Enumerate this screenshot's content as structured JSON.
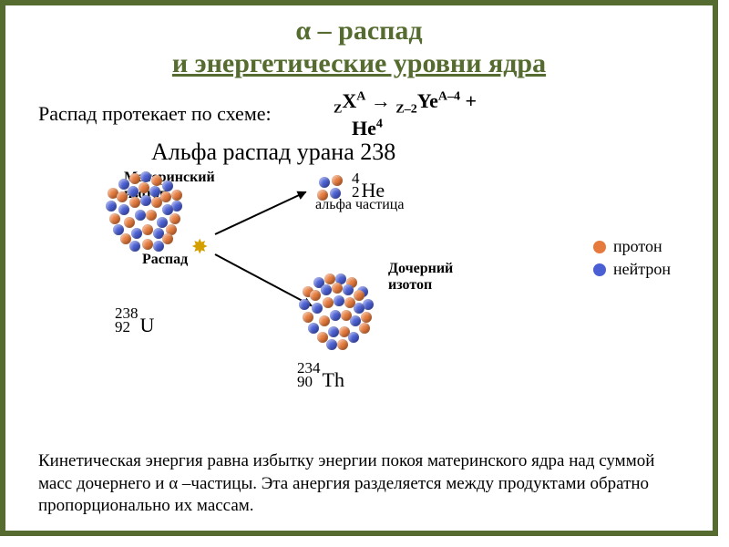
{
  "title": {
    "line1": "α – распад",
    "line2": "и энергетические уровни ядра"
  },
  "subtitle": "Распад протекает по схеме:",
  "formula_parts": {
    "Z": "Z",
    "X": "X",
    "A": "A",
    "arrow": "→",
    "Z2": "Z–2",
    "Y": "Ye",
    "A4": "A–4",
    "plus": "+",
    "He": "He",
    "He4": "4"
  },
  "diagram_title": "Альфа распад урана 238",
  "colors": {
    "proton": "#e67a3c",
    "neutron": "#4a5fd4",
    "frame": "#556b2f",
    "text": "#000000",
    "background": "#ffffff"
  },
  "labels": {
    "parent": "Материнский\nизотоп",
    "alpha_particle": "альфа частица",
    "decay": "Распад",
    "daughter": "Дочерний\nизотоп",
    "U_sym": "U",
    "U_A": "238",
    "U_Z": "92",
    "Th_sym": "Th",
    "Th_A": "234",
    "Th_Z": "90",
    "He_sym": "He",
    "He_A": "4",
    "He_Z": "2"
  },
  "legend": {
    "proton": "протон",
    "neutron": "нейтрон"
  },
  "bottom_text": "Кинетическая энергия равна избытку энергии покоя материнского ядра над суммой масс дочернего и α –частицы. Эта анергия разделяется между продуктами обратно пропорционально их массам.",
  "font": {
    "title_size": 30,
    "body_size": 19,
    "label_size": 16,
    "diagram_title_size": 26
  },
  "particles": {
    "parent_pos": [
      [
        2,
        20,
        "p"
      ],
      [
        14,
        10,
        "n"
      ],
      [
        26,
        4,
        "p"
      ],
      [
        38,
        2,
        "n"
      ],
      [
        50,
        6,
        "p"
      ],
      [
        62,
        12,
        "n"
      ],
      [
        72,
        22,
        "p"
      ],
      [
        0,
        34,
        "n"
      ],
      [
        12,
        24,
        "p"
      ],
      [
        24,
        18,
        "n"
      ],
      [
        36,
        14,
        "p"
      ],
      [
        48,
        18,
        "n"
      ],
      [
        60,
        24,
        "p"
      ],
      [
        72,
        34,
        "n"
      ],
      [
        4,
        48,
        "p"
      ],
      [
        14,
        38,
        "n"
      ],
      [
        26,
        30,
        "p"
      ],
      [
        38,
        28,
        "n"
      ],
      [
        50,
        30,
        "p"
      ],
      [
        62,
        38,
        "n"
      ],
      [
        70,
        48,
        "p"
      ],
      [
        8,
        60,
        "n"
      ],
      [
        20,
        52,
        "p"
      ],
      [
        32,
        44,
        "n"
      ],
      [
        44,
        44,
        "p"
      ],
      [
        56,
        52,
        "n"
      ],
      [
        66,
        60,
        "p"
      ],
      [
        16,
        70,
        "p"
      ],
      [
        28,
        64,
        "n"
      ],
      [
        40,
        60,
        "p"
      ],
      [
        52,
        64,
        "n"
      ],
      [
        62,
        70,
        "p"
      ],
      [
        26,
        78,
        "n"
      ],
      [
        40,
        76,
        "p"
      ],
      [
        52,
        78,
        "n"
      ]
    ],
    "daughter_pos": [
      [
        6,
        18,
        "p"
      ],
      [
        18,
        8,
        "n"
      ],
      [
        30,
        4,
        "p"
      ],
      [
        42,
        4,
        "n"
      ],
      [
        54,
        8,
        "p"
      ],
      [
        66,
        18,
        "n"
      ],
      [
        2,
        32,
        "n"
      ],
      [
        14,
        22,
        "p"
      ],
      [
        26,
        16,
        "n"
      ],
      [
        38,
        14,
        "p"
      ],
      [
        50,
        16,
        "n"
      ],
      [
        62,
        22,
        "p"
      ],
      [
        72,
        32,
        "n"
      ],
      [
        6,
        46,
        "p"
      ],
      [
        16,
        36,
        "n"
      ],
      [
        28,
        30,
        "p"
      ],
      [
        40,
        28,
        "n"
      ],
      [
        52,
        30,
        "p"
      ],
      [
        62,
        36,
        "n"
      ],
      [
        70,
        46,
        "p"
      ],
      [
        12,
        58,
        "n"
      ],
      [
        24,
        50,
        "p"
      ],
      [
        36,
        44,
        "n"
      ],
      [
        48,
        44,
        "p"
      ],
      [
        58,
        50,
        "n"
      ],
      [
        68,
        58,
        "p"
      ],
      [
        22,
        68,
        "p"
      ],
      [
        34,
        62,
        "n"
      ],
      [
        46,
        62,
        "p"
      ],
      [
        56,
        68,
        "n"
      ],
      [
        32,
        76,
        "n"
      ],
      [
        44,
        76,
        "p"
      ]
    ],
    "alpha_pos": [
      [
        4,
        4,
        "n"
      ],
      [
        18,
        2,
        "p"
      ],
      [
        2,
        18,
        "p"
      ],
      [
        16,
        16,
        "n"
      ]
    ]
  }
}
